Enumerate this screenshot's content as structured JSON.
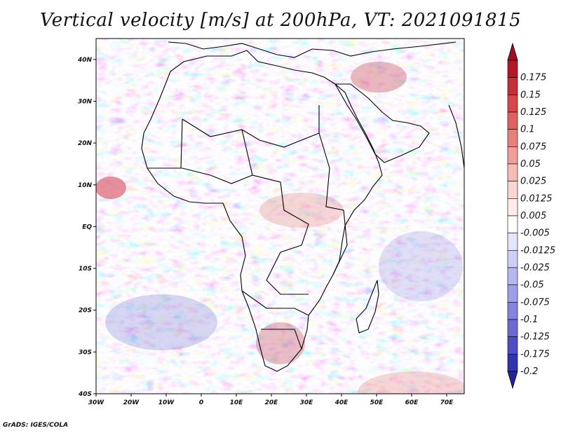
{
  "title": "Vertical velocity [m/s] at 200hPa, VT: 2021091815",
  "credit": "GrADS: IGES/COLA",
  "map": {
    "region": "Africa",
    "longitude_labels": [
      "30W",
      "20W",
      "10W",
      "0",
      "10E",
      "20E",
      "30E",
      "40E",
      "50E",
      "60E",
      "70E"
    ],
    "latitude_labels": [
      "40N",
      "30N",
      "20N",
      "10N",
      "EQ",
      "10S",
      "20S",
      "30S",
      "40S"
    ],
    "lon_range": [
      -30,
      75
    ],
    "lat_range": [
      -40,
      45
    ]
  },
  "colorbar": {
    "levels": [
      {
        "label": "0.175",
        "color": "#b2182b"
      },
      {
        "label": "0.15",
        "color": "#c4303a"
      },
      {
        "label": "0.125",
        "color": "#d6474b"
      },
      {
        "label": "0.1",
        "color": "#e0625f"
      },
      {
        "label": "0.075",
        "color": "#e8807c"
      },
      {
        "label": "0.05",
        "color": "#f09e99"
      },
      {
        "label": "0.025",
        "color": "#f6bcb6"
      },
      {
        "label": "0.0125",
        "color": "#fad6d1"
      },
      {
        "label": "0.005",
        "color": "#fdecea"
      },
      {
        "label": "-0.005",
        "color": "#ffffff"
      },
      {
        "label": "-0.0125",
        "color": "#e6e6fb"
      },
      {
        "label": "-0.025",
        "color": "#cfcff6"
      },
      {
        "label": "-0.05",
        "color": "#b7b7f0"
      },
      {
        "label": "-0.075",
        "color": "#9f9fe8"
      },
      {
        "label": "-0.1",
        "color": "#8484de"
      },
      {
        "label": "-0.125",
        "color": "#6a6ad2"
      },
      {
        "label": "-0.175",
        "color": "#4e4ec3"
      },
      {
        "label": "-0.2",
        "color": "#3434ae"
      }
    ],
    "top_arrow_color": "#a01020",
    "bottom_arrow_color": "#24249a"
  }
}
